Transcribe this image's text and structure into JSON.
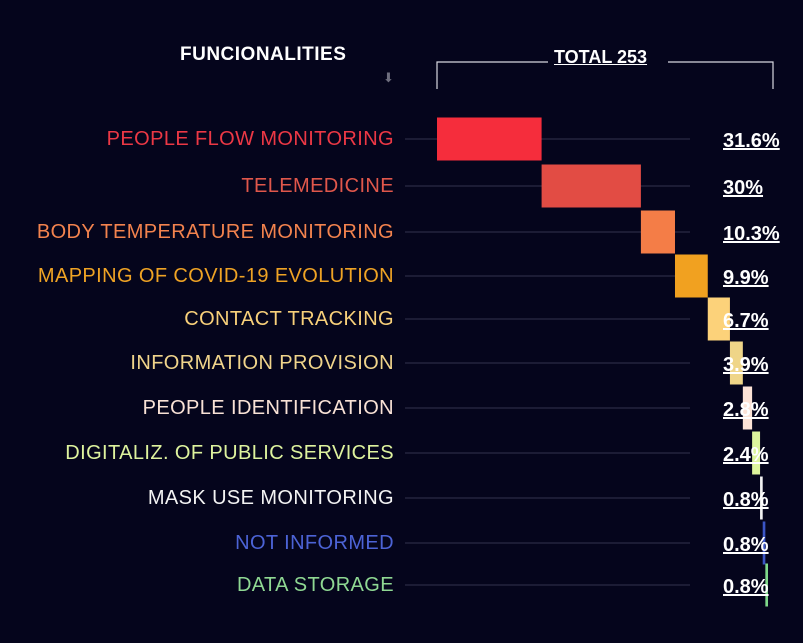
{
  "header": {
    "funcionalities_label": "FUNCIONALITIES",
    "total_label": "TOTAL 253"
  },
  "chart_data": {
    "type": "bar",
    "layout": "waterfall",
    "total": 253,
    "categories": [
      "PEOPLE FLOW MONITORING",
      "TELEMEDICINE",
      "BODY TEMPERATURE MONITORING",
      "MAPPING OF COVID-19 EVOLUTION",
      "CONTACT TRACKING",
      "INFORMATION PROVISION",
      "PEOPLE IDENTIFICATION",
      "DIGITALIZ. OF PUBLIC SERVICES",
      "MASK USE MONITORING",
      "NOT INFORMED",
      "DATA STORAGE"
    ],
    "values": [
      31.6,
      30,
      10.3,
      9.9,
      6.7,
      3.9,
      2.8,
      2.4,
      0.8,
      0.8,
      0.8
    ],
    "value_labels": [
      "31.6%",
      "30%",
      "10.3%",
      "9.9%",
      "6.7%",
      "3.9%",
      "2.8%",
      "2.4%",
      "0.8%",
      "0.8%",
      "0.8%"
    ],
    "colors": [
      "#f52d3c",
      "#e24c44",
      "#f47d47",
      "#f1a120",
      "#fcd27a",
      "#efd588",
      "#fde3d6",
      "#ddf59d",
      "#f3f3f3",
      "#3b55c5",
      "#7fd98a"
    ],
    "label_colors": [
      "#ec3845",
      "#e0574b",
      "#f3834e",
      "#efa324",
      "#f8d07a",
      "#f0d48b",
      "#f9e2d6",
      "#def39e",
      "#f3f3f3",
      "#4c63d6",
      "#8fd893"
    ]
  }
}
